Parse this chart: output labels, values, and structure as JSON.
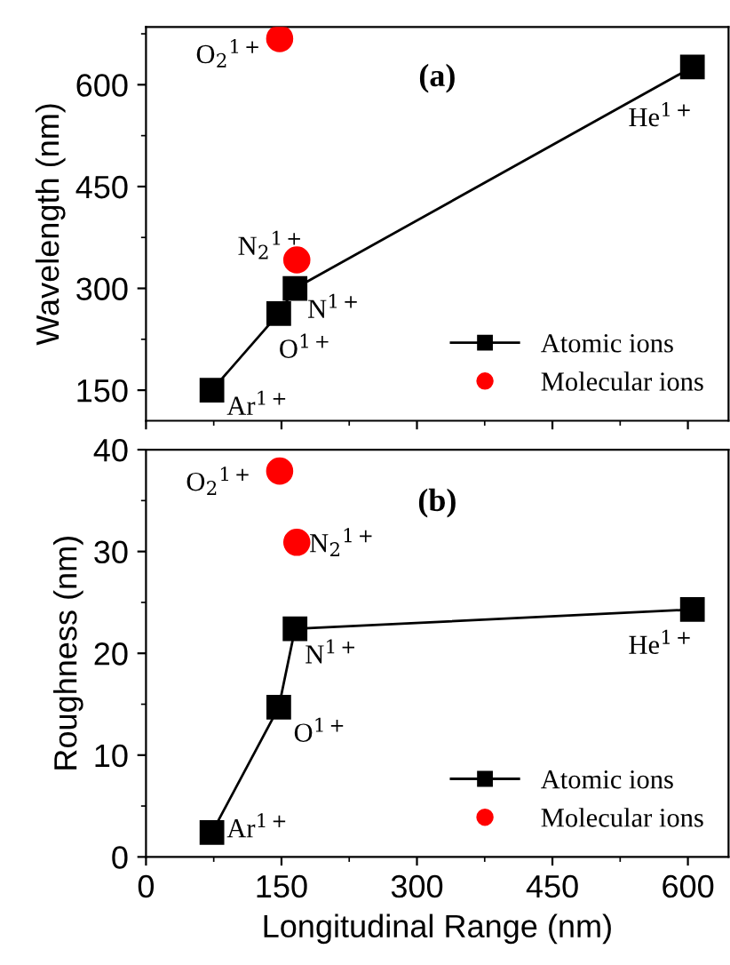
{
  "chart_data": [
    {
      "type": "line",
      "title": "(a)",
      "ylabel": "Wavelength (nm)",
      "xlim": [
        0,
        645
      ],
      "xticks": [
        0,
        150,
        300,
        450,
        600
      ],
      "ylim": [
        105,
        685
      ],
      "yticks": [
        150,
        300,
        450,
        600
      ],
      "tick_labels": "y",
      "legend": "lower right",
      "grid": false,
      "series": [
        {
          "name": "Atomic ions",
          "color": "#000000",
          "marker": "square",
          "line_style": "solid",
          "x": [
            73,
            147,
            165,
            605
          ],
          "values": [
            150,
            263,
            300,
            626
          ]
        },
        {
          "name": "Molecular ions",
          "type": "scatter",
          "color": "#ff0000",
          "marker": "circle",
          "x": [
            148,
            167
          ],
          "values": [
            668,
            342
          ]
        }
      ],
      "annotations": [
        {
          "text": "O$_{2}$$^{1+}$",
          "x": 148,
          "y": 668
        },
        {
          "text": "N$_{2}$$^{1+}$",
          "x": 167,
          "y": 342
        },
        {
          "text": "N$^{1+}$",
          "x": 165,
          "y": 300
        },
        {
          "text": "O$^{1+}$",
          "x": 147,
          "y": 263
        },
        {
          "text": "Ar$^{1+}$",
          "x": 73,
          "y": 150
        },
        {
          "text": "He$^{1+}$",
          "x": 605,
          "y": 626
        }
      ]
    },
    {
      "type": "line",
      "title": "(b)",
      "xlabel": "Longitudinal Range (nm)",
      "ylabel": "Roughness (nm)",
      "xlim": [
        0,
        645
      ],
      "xticks": [
        0,
        150,
        300,
        450,
        600
      ],
      "ylim": [
        0,
        40
      ],
      "yticks": [
        0,
        10,
        20,
        30,
        40
      ],
      "legend": "lower right",
      "grid": false,
      "series": [
        {
          "name": "Atomic ions",
          "color": "#000000",
          "marker": "square",
          "line_style": "solid",
          "x": [
            73,
            147,
            165,
            605
          ],
          "values": [
            2.4,
            14.7,
            22.4,
            24.3
          ]
        },
        {
          "name": "Molecular ions",
          "type": "scatter",
          "color": "#ff0000",
          "marker": "circle",
          "x": [
            148,
            167
          ],
          "values": [
            37.9,
            30.9
          ]
        }
      ],
      "annotations": [
        {
          "text": "O$_{2}$$^{1+}$",
          "x": 148,
          "y": 37.9
        },
        {
          "text": "N$_{2}$$^{1+}$",
          "x": 167,
          "y": 30.9
        },
        {
          "text": "N$^{1+}$",
          "x": 165,
          "y": 22.4
        },
        {
          "text": "O$^{1+}$",
          "x": 147,
          "y": 14.7
        },
        {
          "text": "Ar$^{1+}$",
          "x": 73,
          "y": 2.4
        },
        {
          "text": "He$^{1+}$",
          "x": 605,
          "y": 24.3
        }
      ]
    }
  ]
}
